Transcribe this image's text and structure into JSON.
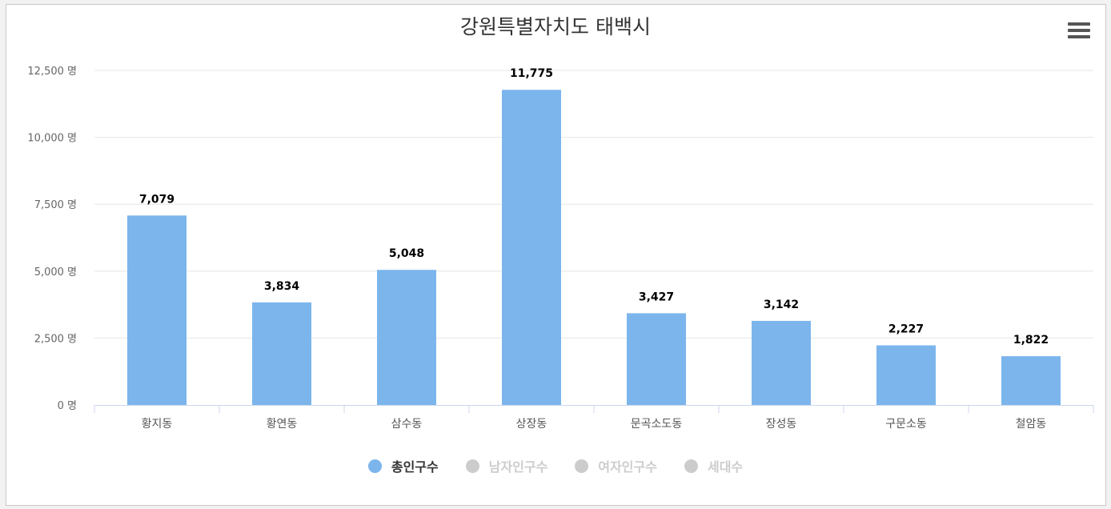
{
  "chart_data": {
    "type": "bar",
    "title": "강원특별자치도 태백시",
    "categories": [
      "황지동",
      "황연동",
      "삼수동",
      "상장동",
      "문곡소도동",
      "장성동",
      "구문소동",
      "철암동"
    ],
    "series": [
      {
        "name": "총인구수",
        "values": [
          7079,
          3834,
          5048,
          11775,
          3427,
          3142,
          2227,
          1822
        ],
        "color": "#7cb5ec"
      }
    ],
    "data_labels": [
      "7,079",
      "3,834",
      "5,048",
      "11,775",
      "3,427",
      "3,142",
      "2,227",
      "1,822"
    ],
    "ylim": [
      0,
      12500
    ],
    "yticks": [
      0,
      2500,
      5000,
      7500,
      10000,
      12500
    ],
    "ytick_labels": [
      "0 명",
      "2,500 명",
      "5,000 명",
      "7,500 명",
      "10,000 명",
      "12,500 명"
    ],
    "grid": true,
    "legend_position": "bottom",
    "legend": [
      {
        "label": "총인구수",
        "active": true,
        "color": "#7cb5ec"
      },
      {
        "label": "남자인구수",
        "active": false,
        "color": "#cccccc"
      },
      {
        "label": "여자인구수",
        "active": false,
        "color": "#cccccc"
      },
      {
        "label": "세대수",
        "active": false,
        "color": "#cccccc"
      }
    ]
  },
  "ui": {
    "menu_icon": "hamburger-menu-icon"
  }
}
